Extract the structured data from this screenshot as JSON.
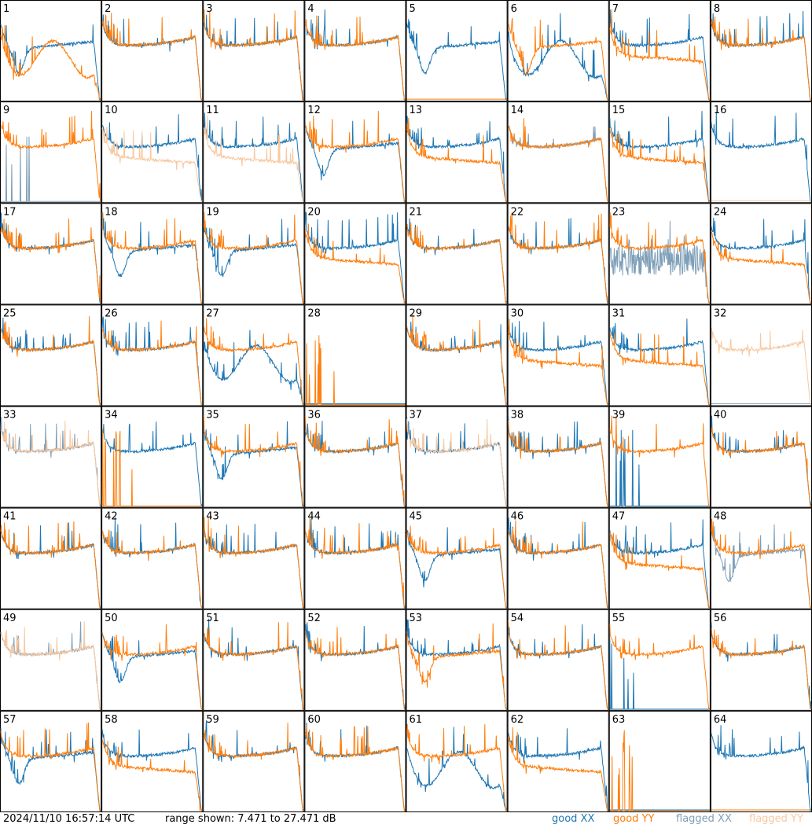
{
  "footer": {
    "timestamp": "2024/11/10 16:57:14 UTC",
    "range_text": "range shown: 7.471 to 27.471 dB"
  },
  "legend": {
    "good_xx": "good XX",
    "good_yy": "good YY",
    "flagged_xx": "flagged XX",
    "flagged_yy": "flagged YY"
  },
  "colors": {
    "good_xx": "#1f77b4",
    "good_yy": "#ff7f0e",
    "flagged_xx": "#7f9fb8",
    "flagged_yy": "#f8c8a0",
    "frame": "#000000"
  },
  "chart_data": {
    "type": "line",
    "layout": "8x8 small multiples",
    "y_range_db": [
      7.471,
      27.471
    ],
    "panels": [
      {
        "label": "1",
        "xx": {
          "shape": "A",
          "status": "good"
        },
        "yy": {
          "shape": "G",
          "status": "good"
        }
      },
      {
        "label": "2",
        "xx": {
          "shape": "B",
          "status": "good"
        },
        "yy": {
          "shape": "B",
          "status": "good"
        }
      },
      {
        "label": "3",
        "xx": {
          "shape": "B",
          "status": "good"
        },
        "yy": {
          "shape": "B",
          "status": "good"
        }
      },
      {
        "label": "4",
        "xx": {
          "shape": "B",
          "status": "good"
        },
        "yy": {
          "shape": "B",
          "status": "good"
        }
      },
      {
        "label": "5",
        "xx": {
          "shape": "A",
          "status": "good"
        },
        "yy": {
          "shape": "Z",
          "status": "good"
        }
      },
      {
        "label": "6",
        "xx": {
          "shape": "G",
          "status": "good"
        },
        "yy": {
          "shape": "A",
          "status": "good"
        }
      },
      {
        "label": "7",
        "xx": {
          "shape": "B",
          "status": "good"
        },
        "yy": {
          "shape": "D",
          "status": "good"
        }
      },
      {
        "label": "8",
        "xx": {
          "shape": "B",
          "status": "good"
        },
        "yy": {
          "shape": "B",
          "status": "good"
        }
      },
      {
        "label": "9",
        "xx": {
          "shape": "S",
          "status": "flagged"
        },
        "yy": {
          "shape": "B",
          "status": "good"
        }
      },
      {
        "label": "10",
        "xx": {
          "shape": "B",
          "status": "good"
        },
        "yy": {
          "shape": "D",
          "status": "flagged"
        }
      },
      {
        "label": "11",
        "xx": {
          "shape": "B",
          "status": "good"
        },
        "yy": {
          "shape": "D",
          "status": "flagged"
        }
      },
      {
        "label": "12",
        "xx": {
          "shape": "A",
          "status": "good"
        },
        "yy": {
          "shape": "B",
          "status": "good"
        }
      },
      {
        "label": "13",
        "xx": {
          "shape": "B",
          "status": "good"
        },
        "yy": {
          "shape": "D",
          "status": "good"
        }
      },
      {
        "label": "14",
        "xx": {
          "shape": "B",
          "status": "flagged"
        },
        "yy": {
          "shape": "B",
          "status": "good"
        }
      },
      {
        "label": "15",
        "xx": {
          "shape": "B",
          "status": "good"
        },
        "yy": {
          "shape": "D",
          "status": "good"
        }
      },
      {
        "label": "16",
        "xx": {
          "shape": "B",
          "status": "good"
        },
        "yy": {
          "shape": "Z",
          "status": "flagged"
        }
      },
      {
        "label": "17",
        "xx": {
          "shape": "B",
          "status": "good"
        },
        "yy": {
          "shape": "B",
          "status": "good"
        }
      },
      {
        "label": "18",
        "xx": {
          "shape": "A",
          "status": "good"
        },
        "yy": {
          "shape": "B",
          "status": "good"
        }
      },
      {
        "label": "19",
        "xx": {
          "shape": "A",
          "status": "good"
        },
        "yy": {
          "shape": "B",
          "status": "good"
        }
      },
      {
        "label": "20",
        "xx": {
          "shape": "B",
          "status": "good"
        },
        "yy": {
          "shape": "D",
          "status": "good"
        }
      },
      {
        "label": "21",
        "xx": {
          "shape": "B",
          "status": "good"
        },
        "yy": {
          "shape": "B",
          "status": "good"
        }
      },
      {
        "label": "22",
        "xx": {
          "shape": "B",
          "status": "good"
        },
        "yy": {
          "shape": "B",
          "status": "good"
        }
      },
      {
        "label": "23",
        "xx": {
          "shape": "N",
          "status": "flagged"
        },
        "yy": {
          "shape": "B",
          "status": "good"
        }
      },
      {
        "label": "24",
        "xx": {
          "shape": "B",
          "status": "good"
        },
        "yy": {
          "shape": "D",
          "status": "good"
        }
      },
      {
        "label": "25",
        "xx": {
          "shape": "B",
          "status": "good"
        },
        "yy": {
          "shape": "B",
          "status": "good"
        }
      },
      {
        "label": "26",
        "xx": {
          "shape": "B",
          "status": "good"
        },
        "yy": {
          "shape": "B",
          "status": "good"
        }
      },
      {
        "label": "27",
        "xx": {
          "shape": "G",
          "status": "good"
        },
        "yy": {
          "shape": "B",
          "status": "good"
        }
      },
      {
        "label": "28",
        "xx": {
          "shape": "Z",
          "status": "good"
        },
        "yy": {
          "shape": "S",
          "status": "good"
        }
      },
      {
        "label": "29",
        "xx": {
          "shape": "B",
          "status": "good"
        },
        "yy": {
          "shape": "B",
          "status": "good"
        }
      },
      {
        "label": "30",
        "xx": {
          "shape": "B",
          "status": "good"
        },
        "yy": {
          "shape": "D",
          "status": "good"
        }
      },
      {
        "label": "31",
        "xx": {
          "shape": "B",
          "status": "good"
        },
        "yy": {
          "shape": "D",
          "status": "good"
        }
      },
      {
        "label": "32",
        "xx": {
          "shape": "Z",
          "status": "flagged"
        },
        "yy": {
          "shape": "B",
          "status": "flagged"
        }
      },
      {
        "label": "33",
        "xx": {
          "shape": "B",
          "status": "flagged"
        },
        "yy": {
          "shape": "B",
          "status": "flagged"
        }
      },
      {
        "label": "34",
        "xx": {
          "shape": "B",
          "status": "good"
        },
        "yy": {
          "shape": "S",
          "status": "good"
        }
      },
      {
        "label": "35",
        "xx": {
          "shape": "A",
          "status": "good"
        },
        "yy": {
          "shape": "B",
          "status": "good"
        }
      },
      {
        "label": "36",
        "xx": {
          "shape": "B",
          "status": "good"
        },
        "yy": {
          "shape": "B",
          "status": "good"
        }
      },
      {
        "label": "37",
        "xx": {
          "shape": "B",
          "status": "good"
        },
        "yy": {
          "shape": "B",
          "status": "flagged"
        }
      },
      {
        "label": "38",
        "xx": {
          "shape": "B",
          "status": "good"
        },
        "yy": {
          "shape": "B",
          "status": "good"
        }
      },
      {
        "label": "39",
        "xx": {
          "shape": "S",
          "status": "good"
        },
        "yy": {
          "shape": "B",
          "status": "good"
        }
      },
      {
        "label": "40",
        "xx": {
          "shape": "B",
          "status": "good"
        },
        "yy": {
          "shape": "B",
          "status": "good"
        }
      },
      {
        "label": "41",
        "xx": {
          "shape": "B",
          "status": "good"
        },
        "yy": {
          "shape": "B",
          "status": "good"
        }
      },
      {
        "label": "42",
        "xx": {
          "shape": "B",
          "status": "good"
        },
        "yy": {
          "shape": "B",
          "status": "good"
        }
      },
      {
        "label": "43",
        "xx": {
          "shape": "B",
          "status": "good"
        },
        "yy": {
          "shape": "B",
          "status": "good"
        }
      },
      {
        "label": "44",
        "xx": {
          "shape": "B",
          "status": "good"
        },
        "yy": {
          "shape": "B",
          "status": "good"
        }
      },
      {
        "label": "45",
        "xx": {
          "shape": "A",
          "status": "good"
        },
        "yy": {
          "shape": "B",
          "status": "good"
        }
      },
      {
        "label": "46",
        "xx": {
          "shape": "B",
          "status": "good"
        },
        "yy": {
          "shape": "B",
          "status": "good"
        }
      },
      {
        "label": "47",
        "xx": {
          "shape": "B",
          "status": "good"
        },
        "yy": {
          "shape": "D",
          "status": "good"
        }
      },
      {
        "label": "48",
        "xx": {
          "shape": "A",
          "status": "flagged"
        },
        "yy": {
          "shape": "B",
          "status": "good"
        }
      },
      {
        "label": "49",
        "xx": {
          "shape": "B",
          "status": "flagged"
        },
        "yy": {
          "shape": "B",
          "status": "flagged"
        }
      },
      {
        "label": "50",
        "xx": {
          "shape": "A",
          "status": "good"
        },
        "yy": {
          "shape": "B",
          "status": "good"
        }
      },
      {
        "label": "51",
        "xx": {
          "shape": "B",
          "status": "good"
        },
        "yy": {
          "shape": "B",
          "status": "good"
        }
      },
      {
        "label": "52",
        "xx": {
          "shape": "B",
          "status": "good"
        },
        "yy": {
          "shape": "B",
          "status": "good"
        }
      },
      {
        "label": "53",
        "xx": {
          "shape": "B",
          "status": "good"
        },
        "yy": {
          "shape": "A",
          "status": "good"
        }
      },
      {
        "label": "54",
        "xx": {
          "shape": "B",
          "status": "good"
        },
        "yy": {
          "shape": "B",
          "status": "good"
        }
      },
      {
        "label": "55",
        "xx": {
          "shape": "S",
          "status": "good"
        },
        "yy": {
          "shape": "B",
          "status": "good"
        }
      },
      {
        "label": "56",
        "xx": {
          "shape": "B",
          "status": "good"
        },
        "yy": {
          "shape": "B",
          "status": "good"
        }
      },
      {
        "label": "57",
        "xx": {
          "shape": "A",
          "status": "good"
        },
        "yy": {
          "shape": "B",
          "status": "good"
        }
      },
      {
        "label": "58",
        "xx": {
          "shape": "B",
          "status": "good"
        },
        "yy": {
          "shape": "D",
          "status": "good"
        }
      },
      {
        "label": "59",
        "xx": {
          "shape": "B",
          "status": "good"
        },
        "yy": {
          "shape": "B",
          "status": "good"
        }
      },
      {
        "label": "60",
        "xx": {
          "shape": "B",
          "status": "good"
        },
        "yy": {
          "shape": "B",
          "status": "good"
        }
      },
      {
        "label": "61",
        "xx": {
          "shape": "G",
          "status": "good"
        },
        "yy": {
          "shape": "B",
          "status": "good"
        }
      },
      {
        "label": "62",
        "xx": {
          "shape": "B",
          "status": "good"
        },
        "yy": {
          "shape": "D",
          "status": "good"
        }
      },
      {
        "label": "63",
        "xx": {
          "shape": "Z",
          "status": "good"
        },
        "yy": {
          "shape": "S",
          "status": "good"
        }
      },
      {
        "label": "64",
        "xx": {
          "shape": "B",
          "status": "good"
        },
        "yy": {
          "shape": "Z",
          "status": "good"
        }
      }
    ]
  }
}
